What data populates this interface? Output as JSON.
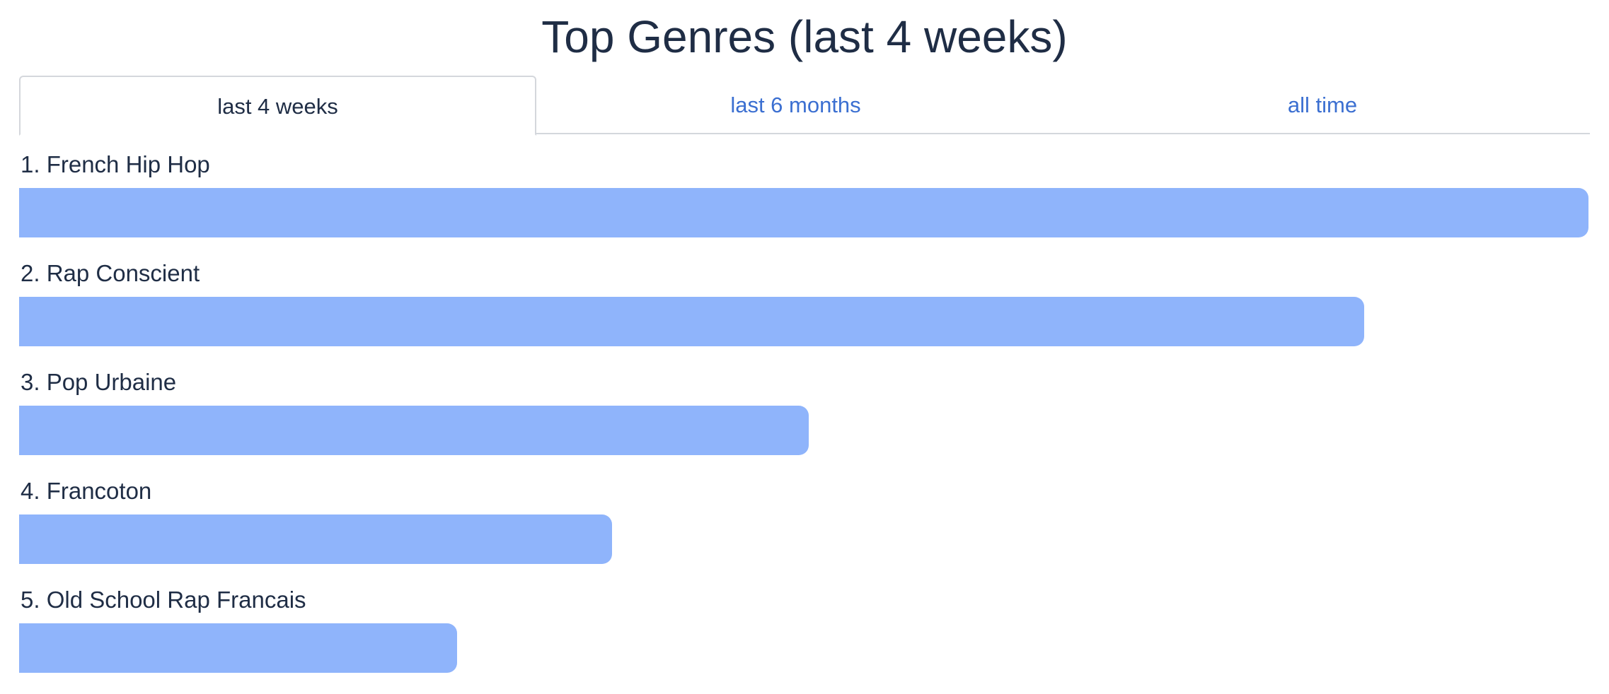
{
  "page": {
    "title": "Top Genres (last 4 weeks)"
  },
  "tabs": [
    {
      "label": "last 4 weeks",
      "active": true
    },
    {
      "label": "last 6 months",
      "active": false
    },
    {
      "label": "all time",
      "active": false
    }
  ],
  "genres": [
    {
      "label": "1. French Hip Hop",
      "share": 1.0
    },
    {
      "label": "2. Rap Conscient",
      "share": 0.857
    },
    {
      "label": "3. Pop Urbaine",
      "share": 0.503
    },
    {
      "label": "4. Francoton",
      "share": 0.378
    },
    {
      "label": "5. Old School Rap Francais",
      "share": 0.279
    }
  ],
  "colors": {
    "bar": "#8fb4fb",
    "text": "#1f2d45",
    "link": "#3b6fd1",
    "tab_border": "#d4d7dc"
  }
}
